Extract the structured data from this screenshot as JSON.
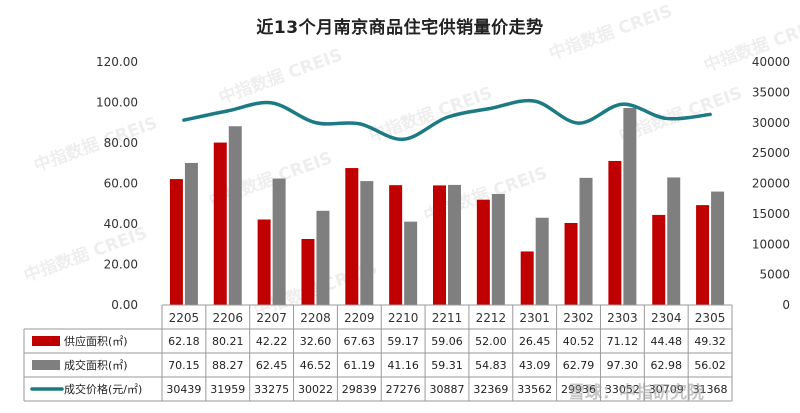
{
  "title": "近13个月南京商品住宅供销量价走势",
  "watermark": "中指数据 CREIS",
  "footer_brand": "雪球：中指研究院",
  "colors": {
    "supply": "#c00000",
    "transaction": "#7f7f7f",
    "price": "#1b7a84"
  },
  "chart_data": {
    "type": "bar",
    "categories": [
      "2205",
      "2206",
      "2207",
      "2208",
      "2209",
      "2210",
      "2211",
      "2212",
      "2301",
      "2302",
      "2303",
      "2304",
      "2305"
    ],
    "series": [
      {
        "name": "供应面积(㎡)",
        "type": "bar",
        "axis": "left",
        "values": [
          62.18,
          80.21,
          42.22,
          32.6,
          67.63,
          59.17,
          59.06,
          52.0,
          26.45,
          40.52,
          71.12,
          44.48,
          49.32
        ]
      },
      {
        "name": "成交面积(㎡)",
        "type": "bar",
        "axis": "left",
        "values": [
          70.15,
          88.27,
          62.45,
          46.52,
          61.19,
          41.16,
          59.31,
          54.83,
          43.09,
          62.79,
          97.3,
          62.98,
          56.02
        ]
      },
      {
        "name": "成交价格(元/㎡)",
        "type": "line",
        "axis": "right",
        "values": [
          30439,
          31959,
          33275,
          30022,
          29839,
          27276,
          30887,
          32369,
          33562,
          29936,
          33052,
          30709,
          31368
        ]
      }
    ],
    "price_labels": [
      "30439",
      "31959",
      "33275",
      "30022",
      "29839",
      "27276",
      "30887",
      "32369",
      "33562",
      "29936",
      "33052",
      "30709",
      "31368"
    ],
    "y_left": {
      "min": 0,
      "max": 120,
      "step": 20,
      "tick_labels": [
        "0.00",
        "20.00",
        "40.00",
        "60.00",
        "80.00",
        "100.00",
        "120.00"
      ]
    },
    "y_right": {
      "min": 0,
      "max": 40000,
      "step": 5000,
      "tick_labels": [
        "0",
        "5000",
        "10000",
        "15000",
        "20000",
        "25000",
        "30000",
        "35000",
        "40000"
      ]
    },
    "grid": false,
    "legend": "table-rows"
  }
}
